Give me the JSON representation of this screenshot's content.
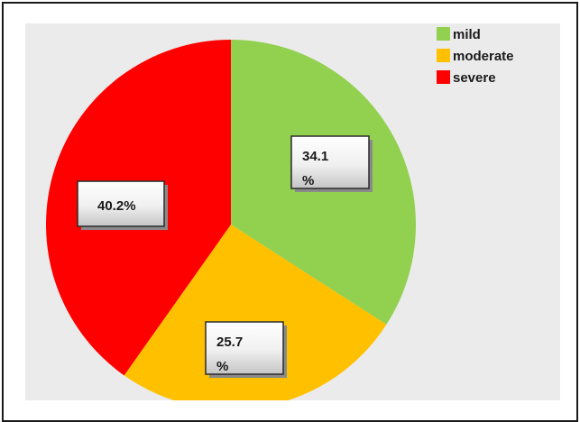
{
  "chart_data": {
    "type": "pie",
    "categories": [
      "mild",
      "moderate",
      "severe"
    ],
    "values": [
      34.1,
      25.7,
      40.2
    ],
    "unit": "%",
    "data_labels": [
      "34.1\n%",
      "25.7\n%",
      "40.2%"
    ],
    "colors": [
      "#92d050",
      "#ffc000",
      "#ff0000"
    ],
    "legend_placement": "top-right",
    "start_angle_deg": 0,
    "direction": "clockwise"
  }
}
